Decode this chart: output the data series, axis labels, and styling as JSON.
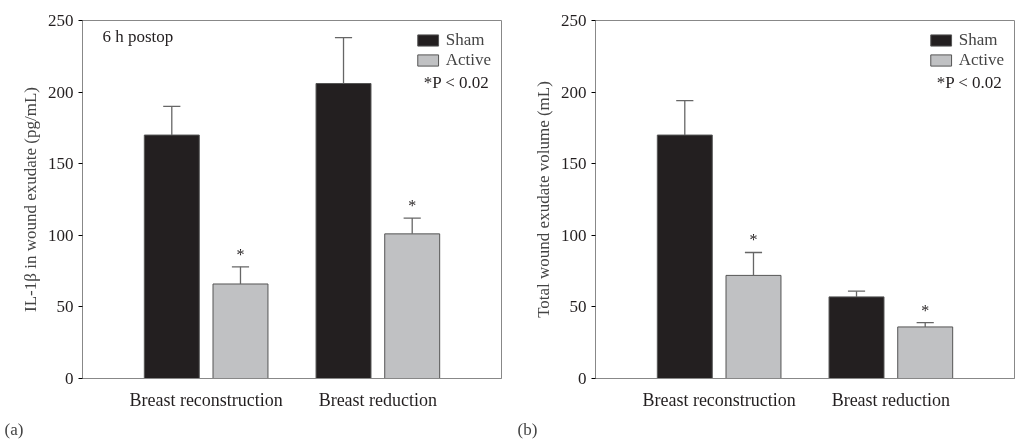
{
  "chart_data": [
    {
      "type": "bar",
      "title": "6 h postop",
      "ylabel": "IL-1β in wound exudate (pg/mL)",
      "categories": [
        "Breast reconstruction",
        "Breast reduction"
      ],
      "series": [
        {
          "name": "Sham",
          "color": "#231f20",
          "values": [
            170,
            206
          ],
          "errors": [
            [
              170,
              190
            ],
            [
              206,
              238
            ]
          ]
        },
        {
          "name": "Active",
          "color": "#c0c1c3",
          "values": [
            66,
            101
          ],
          "errors": [
            [
              66,
              78
            ],
            [
              101,
              112
            ]
          ]
        }
      ],
      "ylim": [
        0,
        250
      ],
      "yticks": [
        0,
        50,
        100,
        150,
        200,
        250
      ],
      "grid": false,
      "legend": "top right",
      "annotations": [
        "*",
        "*",
        "*P < 0.02",
        "(a)"
      ]
    },
    {
      "type": "bar",
      "ylabel": "Total wound exudate volume (mL)",
      "categories": [
        "Breast reconstruction",
        "Breast reduction"
      ],
      "series": [
        {
          "name": "Sham",
          "color": "#231f20",
          "values": [
            170,
            57
          ],
          "errors": [
            [
              170,
              194
            ],
            [
              57,
              61
            ]
          ]
        },
        {
          "name": "Active",
          "color": "#c0c1c3",
          "values": [
            72,
            36
          ],
          "errors": [
            [
              72,
              88
            ],
            [
              36,
              39
            ]
          ]
        }
      ],
      "ylim": [
        0,
        250
      ],
      "yticks": [
        0,
        50,
        100,
        150,
        200,
        250
      ],
      "grid": false,
      "legend": "top right",
      "annotations": [
        "*",
        "*",
        "*P < 0.02",
        "(b)"
      ]
    }
  ]
}
